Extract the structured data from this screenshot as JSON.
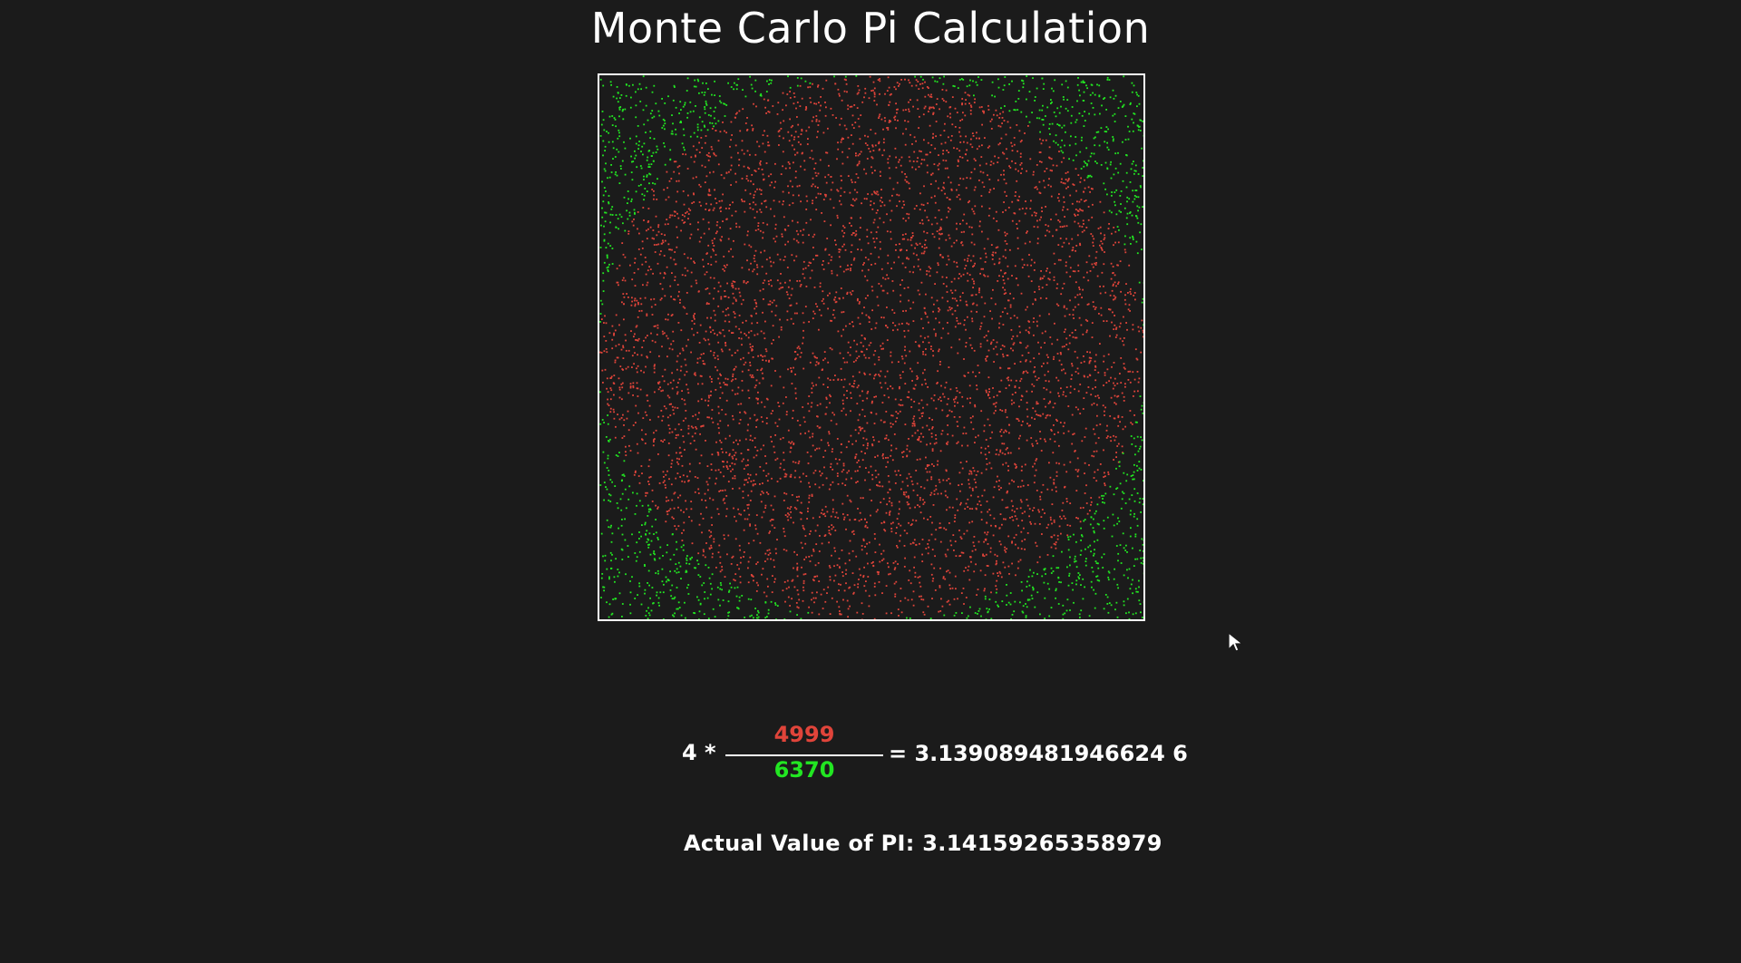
{
  "app": {
    "title": "Monte Carlo Pi Calculation"
  },
  "simulation": {
    "inside_count": 4999,
    "total_count": 6370,
    "inside_color": "#e0443a",
    "outside_color": "#22e622",
    "box_border_color": "#ffffff",
    "background_color": "#1b1b1b"
  },
  "formula": {
    "multiplier_text": "4 *",
    "numerator": "4999",
    "denominator": "6370",
    "result_text": "= 3.139089481946624 6"
  },
  "actual": {
    "text": "Actual Value of PI: 3.14159265358979"
  },
  "icons": {
    "cursor": "mouse-pointer-icon"
  }
}
